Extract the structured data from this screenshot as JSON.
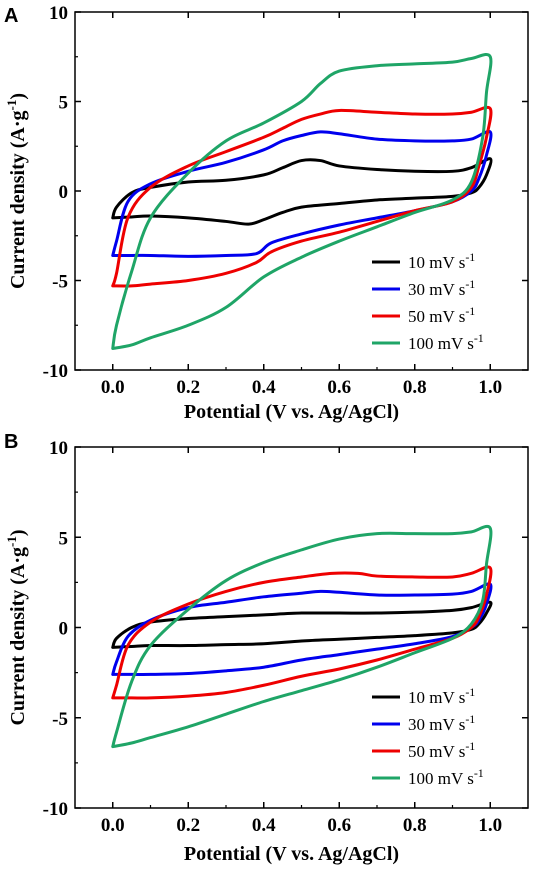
{
  "chart_data": [
    {
      "panel": "A",
      "type": "line",
      "xlabel": "Potential (V vs. Ag/AgCl)",
      "ylabel_main": "Current density (A·g",
      "ylabel_sup": "-1",
      "ylabel_close": ")",
      "xlim": [
        -0.1,
        1.1
      ],
      "ylim": [
        -10,
        10
      ],
      "xticks": [
        "0.0",
        "0.2",
        "0.4",
        "0.6",
        "0.8",
        "1.0"
      ],
      "xtick_values": [
        0.0,
        0.2,
        0.4,
        0.6,
        0.8,
        1.0
      ],
      "yticks": [
        "10",
        "5",
        "0",
        "-5",
        "-10"
      ],
      "ytick_values": [
        10,
        5,
        0,
        -5,
        -10
      ],
      "legend_position": "bottom-right",
      "series": [
        {
          "name": "10 mV s",
          "name_sup": "-1",
          "color": "#000000",
          "points": [
            [
              0.0,
              -1.5
            ],
            [
              0.01,
              -0.9
            ],
            [
              0.05,
              -0.1
            ],
            [
              0.1,
              0.2
            ],
            [
              0.2,
              0.5
            ],
            [
              0.3,
              0.6
            ],
            [
              0.4,
              0.9
            ],
            [
              0.45,
              1.3
            ],
            [
              0.5,
              1.7
            ],
            [
              0.55,
              1.7
            ],
            [
              0.6,
              1.4
            ],
            [
              0.7,
              1.2
            ],
            [
              0.8,
              1.1
            ],
            [
              0.9,
              1.1
            ],
            [
              0.95,
              1.3
            ],
            [
              1.0,
              1.8
            ],
            [
              0.99,
              0.9
            ],
            [
              0.97,
              0.2
            ],
            [
              0.95,
              -0.1
            ],
            [
              0.9,
              -0.3
            ],
            [
              0.8,
              -0.4
            ],
            [
              0.7,
              -0.5
            ],
            [
              0.6,
              -0.7
            ],
            [
              0.5,
              -0.9
            ],
            [
              0.45,
              -1.2
            ],
            [
              0.4,
              -1.6
            ],
            [
              0.36,
              -1.85
            ],
            [
              0.3,
              -1.7
            ],
            [
              0.2,
              -1.5
            ],
            [
              0.1,
              -1.4
            ],
            [
              0.05,
              -1.45
            ],
            [
              0.0,
              -1.5
            ]
          ]
        },
        {
          "name": "30 mV s",
          "name_sup": "-1",
          "color": "#0000ee",
          "points": [
            [
              0.0,
              -3.6
            ],
            [
              0.01,
              -2.8
            ],
            [
              0.04,
              -0.6
            ],
            [
              0.1,
              0.4
            ],
            [
              0.2,
              1.1
            ],
            [
              0.3,
              1.6
            ],
            [
              0.4,
              2.3
            ],
            [
              0.45,
              2.8
            ],
            [
              0.5,
              3.1
            ],
            [
              0.55,
              3.3
            ],
            [
              0.6,
              3.2
            ],
            [
              0.7,
              2.9
            ],
            [
              0.8,
              2.8
            ],
            [
              0.9,
              2.8
            ],
            [
              0.95,
              2.9
            ],
            [
              1.0,
              3.3
            ],
            [
              0.99,
              2.0
            ],
            [
              0.97,
              0.7
            ],
            [
              0.95,
              0.0
            ],
            [
              0.9,
              -0.6
            ],
            [
              0.8,
              -1.1
            ],
            [
              0.7,
              -1.5
            ],
            [
              0.6,
              -1.9
            ],
            [
              0.5,
              -2.4
            ],
            [
              0.42,
              -2.9
            ],
            [
              0.38,
              -3.5
            ],
            [
              0.3,
              -3.6
            ],
            [
              0.2,
              -3.65
            ],
            [
              0.1,
              -3.6
            ],
            [
              0.05,
              -3.6
            ],
            [
              0.0,
              -3.6
            ]
          ]
        },
        {
          "name": "50 mV s",
          "name_sup": "-1",
          "color": "#ee0000",
          "points": [
            [
              0.0,
              -5.3
            ],
            [
              0.01,
              -4.6
            ],
            [
              0.04,
              -1.5
            ],
            [
              0.1,
              0.2
            ],
            [
              0.2,
              1.4
            ],
            [
              0.3,
              2.2
            ],
            [
              0.4,
              3.0
            ],
            [
              0.45,
              3.5
            ],
            [
              0.5,
              4.0
            ],
            [
              0.55,
              4.3
            ],
            [
              0.6,
              4.5
            ],
            [
              0.7,
              4.4
            ],
            [
              0.8,
              4.3
            ],
            [
              0.9,
              4.3
            ],
            [
              0.95,
              4.4
            ],
            [
              1.0,
              4.6
            ],
            [
              0.99,
              3.0
            ],
            [
              0.97,
              1.4
            ],
            [
              0.95,
              0.2
            ],
            [
              0.9,
              -0.6
            ],
            [
              0.8,
              -1.1
            ],
            [
              0.7,
              -1.7
            ],
            [
              0.6,
              -2.3
            ],
            [
              0.5,
              -2.8
            ],
            [
              0.42,
              -3.4
            ],
            [
              0.38,
              -4.0
            ],
            [
              0.3,
              -4.6
            ],
            [
              0.2,
              -5.0
            ],
            [
              0.1,
              -5.2
            ],
            [
              0.05,
              -5.3
            ],
            [
              0.0,
              -5.3
            ]
          ]
        },
        {
          "name": "100 mV s",
          "name_sup": "-1",
          "color": "#1fa567",
          "points": [
            [
              0.0,
              -8.8
            ],
            [
              0.01,
              -7.5
            ],
            [
              0.05,
              -4.5
            ],
            [
              0.1,
              -1.5
            ],
            [
              0.2,
              1.0
            ],
            [
              0.3,
              2.8
            ],
            [
              0.4,
              3.8
            ],
            [
              0.5,
              5.0
            ],
            [
              0.55,
              6.0
            ],
            [
              0.6,
              6.7
            ],
            [
              0.7,
              7.0
            ],
            [
              0.8,
              7.1
            ],
            [
              0.9,
              7.2
            ],
            [
              0.95,
              7.4
            ],
            [
              1.0,
              7.5
            ],
            [
              0.99,
              5.5
            ],
            [
              0.98,
              3.0
            ],
            [
              0.95,
              0.5
            ],
            [
              0.9,
              -0.5
            ],
            [
              0.8,
              -1.2
            ],
            [
              0.7,
              -2.0
            ],
            [
              0.6,
              -2.8
            ],
            [
              0.5,
              -3.7
            ],
            [
              0.4,
              -4.8
            ],
            [
              0.3,
              -6.5
            ],
            [
              0.2,
              -7.5
            ],
            [
              0.1,
              -8.2
            ],
            [
              0.05,
              -8.6
            ],
            [
              0.0,
              -8.8
            ]
          ]
        }
      ]
    },
    {
      "panel": "B",
      "type": "line",
      "xlabel": "Potential (V vs. Ag/AgCl)",
      "ylabel_main": "Current density (A·g",
      "ylabel_sup": "-1",
      "ylabel_close": ")",
      "xlim": [
        -0.1,
        1.1
      ],
      "ylim": [
        -10,
        10
      ],
      "xticks": [
        "0.0",
        "0.2",
        "0.4",
        "0.6",
        "0.8",
        "1.0"
      ],
      "xtick_values": [
        0.0,
        0.2,
        0.4,
        0.6,
        0.8,
        1.0
      ],
      "yticks": [
        "10",
        "5",
        "0",
        "-5",
        "-10"
      ],
      "ytick_values": [
        10,
        5,
        0,
        -5,
        -10
      ],
      "legend_position": "bottom-right",
      "series": [
        {
          "name": "10 mV s",
          "name_sup": "-1",
          "color": "#000000",
          "points": [
            [
              0.0,
              -1.1
            ],
            [
              0.01,
              -0.6
            ],
            [
              0.05,
              0.0
            ],
            [
              0.1,
              0.3
            ],
            [
              0.2,
              0.5
            ],
            [
              0.3,
              0.6
            ],
            [
              0.4,
              0.7
            ],
            [
              0.5,
              0.8
            ],
            [
              0.6,
              0.8
            ],
            [
              0.7,
              0.8
            ],
            [
              0.8,
              0.85
            ],
            [
              0.9,
              0.95
            ],
            [
              0.95,
              1.1
            ],
            [
              1.0,
              1.4
            ],
            [
              0.99,
              0.8
            ],
            [
              0.97,
              0.2
            ],
            [
              0.95,
              -0.1
            ],
            [
              0.9,
              -0.3
            ],
            [
              0.8,
              -0.45
            ],
            [
              0.7,
              -0.55
            ],
            [
              0.6,
              -0.65
            ],
            [
              0.5,
              -0.75
            ],
            [
              0.4,
              -0.9
            ],
            [
              0.3,
              -0.95
            ],
            [
              0.2,
              -1.0
            ],
            [
              0.1,
              -1.0
            ],
            [
              0.05,
              -1.05
            ],
            [
              0.0,
              -1.1
            ]
          ]
        },
        {
          "name": "30 mV s",
          "name_sup": "-1",
          "color": "#0000ee",
          "points": [
            [
              0.0,
              -2.6
            ],
            [
              0.01,
              -1.9
            ],
            [
              0.04,
              -0.5
            ],
            [
              0.1,
              0.4
            ],
            [
              0.2,
              1.1
            ],
            [
              0.3,
              1.4
            ],
            [
              0.4,
              1.7
            ],
            [
              0.5,
              1.9
            ],
            [
              0.55,
              2.0
            ],
            [
              0.6,
              1.95
            ],
            [
              0.7,
              1.8
            ],
            [
              0.8,
              1.8
            ],
            [
              0.9,
              1.85
            ],
            [
              0.95,
              2.0
            ],
            [
              1.0,
              2.4
            ],
            [
              0.99,
              1.3
            ],
            [
              0.97,
              0.4
            ],
            [
              0.95,
              0.0
            ],
            [
              0.9,
              -0.5
            ],
            [
              0.8,
              -0.9
            ],
            [
              0.7,
              -1.2
            ],
            [
              0.6,
              -1.5
            ],
            [
              0.5,
              -1.8
            ],
            [
              0.4,
              -2.2
            ],
            [
              0.3,
              -2.4
            ],
            [
              0.2,
              -2.55
            ],
            [
              0.1,
              -2.6
            ],
            [
              0.05,
              -2.6
            ],
            [
              0.0,
              -2.6
            ]
          ]
        },
        {
          "name": "50 mV s",
          "name_sup": "-1",
          "color": "#ee0000",
          "points": [
            [
              0.0,
              -3.9
            ],
            [
              0.01,
              -3.2
            ],
            [
              0.04,
              -1.0
            ],
            [
              0.1,
              0.3
            ],
            [
              0.2,
              1.3
            ],
            [
              0.3,
              2.0
            ],
            [
              0.4,
              2.5
            ],
            [
              0.5,
              2.8
            ],
            [
              0.58,
              3.0
            ],
            [
              0.65,
              3.0
            ],
            [
              0.7,
              2.85
            ],
            [
              0.8,
              2.8
            ],
            [
              0.9,
              2.8
            ],
            [
              0.95,
              3.0
            ],
            [
              1.0,
              3.3
            ],
            [
              0.99,
              1.8
            ],
            [
              0.97,
              0.6
            ],
            [
              0.95,
              0.0
            ],
            [
              0.9,
              -0.6
            ],
            [
              0.8,
              -1.2
            ],
            [
              0.7,
              -1.8
            ],
            [
              0.6,
              -2.3
            ],
            [
              0.5,
              -2.7
            ],
            [
              0.4,
              -3.2
            ],
            [
              0.3,
              -3.6
            ],
            [
              0.2,
              -3.8
            ],
            [
              0.1,
              -3.9
            ],
            [
              0.05,
              -3.9
            ],
            [
              0.0,
              -3.9
            ]
          ]
        },
        {
          "name": "100 mV s",
          "name_sup": "-1",
          "color": "#1fa567",
          "points": [
            [
              0.0,
              -6.6
            ],
            [
              0.01,
              -5.8
            ],
            [
              0.05,
              -3.0
            ],
            [
              0.1,
              -1.0
            ],
            [
              0.2,
              1.0
            ],
            [
              0.3,
              2.6
            ],
            [
              0.4,
              3.6
            ],
            [
              0.5,
              4.3
            ],
            [
              0.6,
              4.9
            ],
            [
              0.7,
              5.2
            ],
            [
              0.8,
              5.2
            ],
            [
              0.9,
              5.2
            ],
            [
              0.95,
              5.3
            ],
            [
              1.0,
              5.5
            ],
            [
              0.99,
              3.5
            ],
            [
              0.98,
              1.5
            ],
            [
              0.95,
              0.2
            ],
            [
              0.9,
              -0.6
            ],
            [
              0.8,
              -1.4
            ],
            [
              0.7,
              -2.2
            ],
            [
              0.6,
              -2.9
            ],
            [
              0.5,
              -3.5
            ],
            [
              0.4,
              -4.1
            ],
            [
              0.3,
              -4.8
            ],
            [
              0.2,
              -5.5
            ],
            [
              0.1,
              -6.1
            ],
            [
              0.05,
              -6.4
            ],
            [
              0.0,
              -6.6
            ]
          ]
        }
      ]
    }
  ]
}
